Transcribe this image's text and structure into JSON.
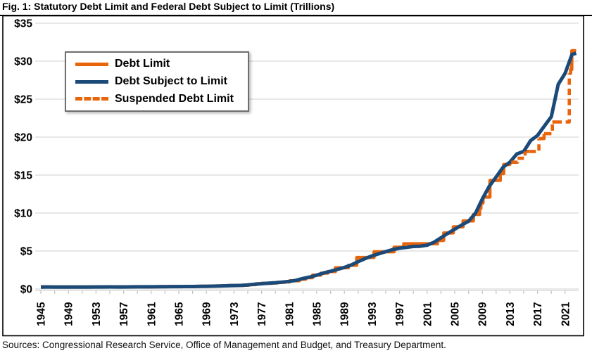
{
  "title": "Fig. 1: Statutory Debt Limit and Federal Debt Subject to Limit (Trillions)",
  "source_note": "Sources: Congressional Research Service, Office of Management and Budget, and Treasury Department.",
  "colors": {
    "debt_limit_orange": "#E8650C",
    "debt_subject_blue": "#1B4A78",
    "gridline": "#D9D9D9",
    "tick": "#BFBFBF",
    "frame": "#000000",
    "legend_border": "#6e6e6e",
    "text": "#000000"
  },
  "chart_data": {
    "type": "line",
    "title": "Fig. 1: Statutory Debt Limit and Federal Debt Subject to Limit (Trillions)",
    "xlabel": "",
    "ylabel": "",
    "xlim": [
      1944,
      2023.8
    ],
    "ylim": [
      0,
      35
    ],
    "grid": "horizontal",
    "legend_position": "upper-left",
    "y_ticks": [
      {
        "v": 35,
        "label": "$35"
      },
      {
        "v": 30,
        "label": "$30"
      },
      {
        "v": 25,
        "label": "$25"
      },
      {
        "v": 20,
        "label": "$20"
      },
      {
        "v": 15,
        "label": "$15"
      },
      {
        "v": 10,
        "label": "$10"
      },
      {
        "v": 5,
        "label": "$5"
      },
      {
        "v": 0,
        "label": "$0"
      }
    ],
    "x_ticks": [
      {
        "v": 1945,
        "label": "1945"
      },
      {
        "v": 1949,
        "label": "1949"
      },
      {
        "v": 1953,
        "label": "1953"
      },
      {
        "v": 1957,
        "label": "1957"
      },
      {
        "v": 1961,
        "label": "1961"
      },
      {
        "v": 1965,
        "label": "1965"
      },
      {
        "v": 1969,
        "label": "1969"
      },
      {
        "v": 1973,
        "label": "1973"
      },
      {
        "v": 1977,
        "label": "1977"
      },
      {
        "v": 1981,
        "label": "1981"
      },
      {
        "v": 1985,
        "label": "1985"
      },
      {
        "v": 1989,
        "label": "1989"
      },
      {
        "v": 1993,
        "label": "1993"
      },
      {
        "v": 1997,
        "label": "1997"
      },
      {
        "v": 2001,
        "label": "2001"
      },
      {
        "v": 2005,
        "label": "2005"
      },
      {
        "v": 2009,
        "label": "2009"
      },
      {
        "v": 2013,
        "label": "2013"
      },
      {
        "v": 2017,
        "label": "2017"
      },
      {
        "v": 2021,
        "label": "2021"
      }
    ],
    "minor_tick_years": {
      "start": 1945,
      "end": 2023,
      "step": 2
    },
    "legend": [
      {
        "label": "Debt Limit",
        "style": "solid",
        "color": "#E8650C"
      },
      {
        "label": "Debt Subject to Limit",
        "style": "solid",
        "color": "#1B4A78"
      },
      {
        "label": "Suspended Debt Limit",
        "style": "dashed",
        "color": "#E8650C"
      }
    ],
    "series": [
      {
        "name": "Debt Limit",
        "color": "#E8650C",
        "dash": null,
        "width": 4.6,
        "step": true,
        "segments": [
          [
            [
              1945.0,
              0.3
            ],
            [
              1946.0,
              0.275
            ],
            [
              1954.5,
              0.281
            ],
            [
              1956.2,
              0.278
            ],
            [
              1957.2,
              0.275
            ],
            [
              1958.2,
              0.288
            ],
            [
              1959.5,
              0.295
            ],
            [
              1960.5,
              0.293
            ],
            [
              1961.5,
              0.298
            ],
            [
              1962.2,
              0.308
            ],
            [
              1963.4,
              0.315
            ],
            [
              1964.5,
              0.324
            ],
            [
              1965.5,
              0.328
            ],
            [
              1966.5,
              0.33
            ],
            [
              1967.2,
              0.336
            ],
            [
              1968.2,
              0.365
            ],
            [
              1969.3,
              0.377
            ],
            [
              1970.3,
              0.395
            ],
            [
              1971.2,
              0.43
            ],
            [
              1972.2,
              0.45
            ],
            [
              1973.5,
              0.465
            ],
            [
              1974.5,
              0.495
            ],
            [
              1975.1,
              0.577
            ],
            [
              1976.2,
              0.682
            ],
            [
              1977.0,
              0.752
            ],
            [
              1978.6,
              0.798
            ],
            [
              1979.3,
              0.879
            ],
            [
              1980.4,
              0.925
            ],
            [
              1981.1,
              1.079
            ],
            [
              1982.5,
              1.29
            ],
            [
              1983.4,
              1.49
            ],
            [
              1984.4,
              1.823
            ],
            [
              1985.6,
              2.079
            ],
            [
              1986.6,
              2.3
            ],
            [
              1987.7,
              2.8
            ],
            [
              1989.6,
              3.122
            ],
            [
              1990.8,
              4.145
            ],
            [
              1993.3,
              4.9
            ],
            [
              1996.2,
              5.5
            ],
            [
              1997.6,
              5.95
            ],
            [
              2002.5,
              6.4
            ],
            [
              2003.4,
              7.384
            ],
            [
              2004.8,
              8.184
            ],
            [
              2006.2,
              8.965
            ],
            [
              2007.7,
              9.815
            ],
            [
              2008.6,
              10.615
            ],
            [
              2008.8,
              11.315
            ],
            [
              2009.1,
              12.104
            ],
            [
              2010.1,
              14.294
            ],
            [
              2011.6,
              15.194
            ],
            [
              2012.1,
              16.394
            ],
            [
              2013.0,
              16.699
            ],
            [
              2013.2,
              16.699
            ]
          ],
          [
            [
              2015.2,
              18.113
            ],
            [
              2015.85,
              18.113
            ]
          ],
          [
            [
              2017.2,
              19.809
            ],
            [
              2017.7,
              19.809
            ]
          ],
          [
            [
              2017.95,
              20.456
            ],
            [
              2018.1,
              20.456
            ]
          ],
          [
            [
              2019.15,
              21.988
            ],
            [
              2019.6,
              21.988
            ]
          ],
          [
            [
              2021.6,
              28.401
            ],
            [
              2021.8,
              28.401
            ],
            [
              2021.8,
              28.9
            ],
            [
              2021.97,
              28.9
            ],
            [
              2021.97,
              31.381
            ],
            [
              2022.6,
              31.381
            ]
          ]
        ]
      },
      {
        "name": "Debt Subject to Limit",
        "color": "#1B4A78",
        "dash": null,
        "width": 5,
        "step": false,
        "segments": [
          [
            [
              1945,
              0.26
            ],
            [
              1946,
              0.269
            ],
            [
              1947,
              0.258
            ],
            [
              1948,
              0.252
            ],
            [
              1949,
              0.252
            ],
            [
              1950,
              0.257
            ],
            [
              1951,
              0.255
            ],
            [
              1952,
              0.259
            ],
            [
              1953,
              0.266
            ],
            [
              1954,
              0.271
            ],
            [
              1955,
              0.274
            ],
            [
              1956,
              0.273
            ],
            [
              1957,
              0.27
            ],
            [
              1958,
              0.276
            ],
            [
              1959,
              0.285
            ],
            [
              1960,
              0.286
            ],
            [
              1961,
              0.289
            ],
            [
              1962,
              0.298
            ],
            [
              1963,
              0.306
            ],
            [
              1964,
              0.312
            ],
            [
              1965,
              0.317
            ],
            [
              1966,
              0.32
            ],
            [
              1967,
              0.326
            ],
            [
              1968,
              0.347
            ],
            [
              1969,
              0.354
            ],
            [
              1970,
              0.371
            ],
            [
              1971,
              0.398
            ],
            [
              1972,
              0.427
            ],
            [
              1973,
              0.458
            ],
            [
              1974,
              0.475
            ],
            [
              1975,
              0.534
            ],
            [
              1976,
              0.621
            ],
            [
              1977,
              0.699
            ],
            [
              1978,
              0.772
            ],
            [
              1979,
              0.827
            ],
            [
              1980,
              0.908
            ],
            [
              1981,
              0.998
            ],
            [
              1982,
              1.142
            ],
            [
              1983,
              1.377
            ],
            [
              1984,
              1.572
            ],
            [
              1985,
              1.823
            ],
            [
              1986,
              2.111
            ],
            [
              1987,
              2.336
            ],
            [
              1988,
              2.587
            ],
            [
              1989,
              2.83
            ],
            [
              1990,
              3.161
            ],
            [
              1991,
              3.599
            ],
            [
              1992,
              4.003
            ],
            [
              1993,
              4.351
            ],
            [
              1994,
              4.643
            ],
            [
              1995,
              4.921
            ],
            [
              1996,
              5.181
            ],
            [
              1997,
              5.369
            ],
            [
              1998,
              5.478
            ],
            [
              1999,
              5.605
            ],
            [
              2000,
              5.629
            ],
            [
              2001,
              5.77
            ],
            [
              2002,
              6.161
            ],
            [
              2003,
              6.738
            ],
            [
              2004,
              7.333
            ],
            [
              2005,
              7.871
            ],
            [
              2006,
              8.42
            ],
            [
              2007,
              8.921
            ],
            [
              2008,
              9.96
            ],
            [
              2009,
              11.853
            ],
            [
              2010,
              13.511
            ],
            [
              2011,
              14.747
            ],
            [
              2012,
              16.027
            ],
            [
              2013,
              16.7
            ],
            [
              2014,
              17.781
            ],
            [
              2015,
              18.12
            ],
            [
              2016,
              19.539
            ],
            [
              2017,
              20.209
            ],
            [
              2018,
              21.462
            ],
            [
              2019,
              22.687
            ],
            [
              2020,
              26.945
            ],
            [
              2021,
              28.401
            ],
            [
              2022,
              30.887
            ],
            [
              2022.6,
              31.05
            ]
          ]
        ]
      },
      {
        "name": "Suspended Debt Limit",
        "color": "#E8650C",
        "dash": "9 5.5",
        "width": 4.6,
        "step": false,
        "segments": [
          [
            [
              2013.2,
              16.699
            ],
            [
              2014.1,
              16.699
            ],
            [
              2014.1,
              17.212
            ],
            [
              2015.2,
              17.212
            ],
            [
              2015.2,
              18.113
            ]
          ],
          [
            [
              2015.85,
              18.113
            ],
            [
              2017.2,
              18.113
            ],
            [
              2017.2,
              19.809
            ]
          ],
          [
            [
              2017.7,
              19.809
            ],
            [
              2017.95,
              19.809
            ],
            [
              2017.95,
              20.456
            ]
          ],
          [
            [
              2018.1,
              20.456
            ],
            [
              2019.15,
              20.456
            ],
            [
              2019.15,
              21.988
            ]
          ],
          [
            [
              2019.6,
              21.988
            ],
            [
              2021.6,
              21.988
            ],
            [
              2021.6,
              28.401
            ]
          ]
        ]
      }
    ]
  }
}
